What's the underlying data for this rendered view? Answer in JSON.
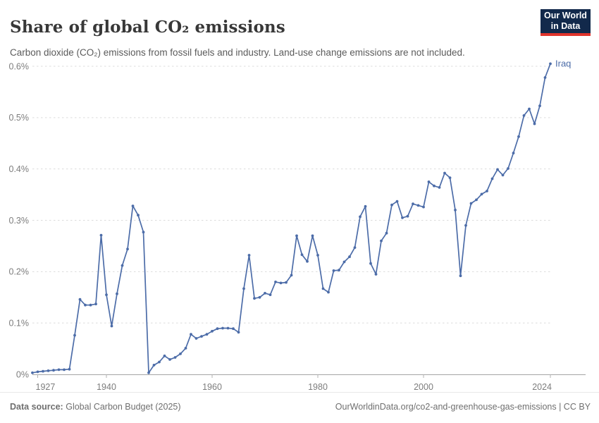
{
  "header": {
    "title": "Share of global CO₂ emissions",
    "subtitle": "Carbon dioxide (CO₂) emissions from fossil fuels and industry. Land-use change emissions are not included.",
    "logo_line1": "Our World",
    "logo_line2": "in Data"
  },
  "footer": {
    "source_label": "Data source:",
    "source_value": "Global Carbon Budget (2025)",
    "link": "OurWorldinData.org/co2-and-greenhouse-gas-emissions | CC BY"
  },
  "colors": {
    "series_line": "#4C6CA8",
    "grid": "#dcdcdc",
    "axis_line": "#a5a5a5",
    "tick_mark": "#b3b3b3",
    "tick_label": "#7d7d7d",
    "title_text": "#383838",
    "subtitle_text": "#5b5b5b",
    "footer_text": "#6f6f6f",
    "logo_bg": "#12294b",
    "logo_bar": "#e0342c"
  },
  "chart_data": {
    "type": "line",
    "title": "Share of global CO₂ emissions",
    "xlabel": "",
    "ylabel": "",
    "unit": "%",
    "grid": "horizontal-dashed",
    "legend_position": "end-of-line-label",
    "xlim": [
      1926,
      2024
    ],
    "ylim": [
      0,
      0.62
    ],
    "x_ticks": [
      1927,
      1940,
      1960,
      1980,
      2000,
      2024
    ],
    "y_ticks": [
      0,
      0.1,
      0.2,
      0.3,
      0.4,
      0.5,
      0.6
    ],
    "y_tick_labels": [
      "0%",
      "0.1%",
      "0.2%",
      "0.3%",
      "0.4%",
      "0.5%",
      "0.6%"
    ],
    "x": [
      1926,
      1927,
      1928,
      1929,
      1930,
      1931,
      1932,
      1933,
      1934,
      1935,
      1936,
      1937,
      1938,
      1939,
      1940,
      1941,
      1942,
      1943,
      1944,
      1945,
      1946,
      1947,
      1948,
      1949,
      1950,
      1951,
      1952,
      1953,
      1954,
      1955,
      1956,
      1957,
      1958,
      1959,
      1960,
      1961,
      1962,
      1963,
      1964,
      1965,
      1966,
      1967,
      1968,
      1969,
      1970,
      1971,
      1972,
      1973,
      1974,
      1975,
      1976,
      1977,
      1978,
      1979,
      1980,
      1981,
      1982,
      1983,
      1984,
      1985,
      1986,
      1987,
      1988,
      1989,
      1990,
      1991,
      1992,
      1993,
      1994,
      1995,
      1996,
      1997,
      1998,
      1999,
      2000,
      2001,
      2002,
      2003,
      2004,
      2005,
      2006,
      2007,
      2008,
      2009,
      2010,
      2011,
      2012,
      2013,
      2014,
      2015,
      2016,
      2017,
      2018,
      2019,
      2020,
      2021,
      2022,
      2023,
      2024
    ],
    "series": [
      {
        "name": "Iraq",
        "values": [
          0.003,
          0.005,
          0.006,
          0.007,
          0.008,
          0.009,
          0.009,
          0.01,
          0.076,
          0.146,
          0.135,
          0.135,
          0.137,
          0.271,
          0.155,
          0.094,
          0.157,
          0.212,
          0.244,
          0.328,
          0.31,
          0.277,
          0.003,
          0.018,
          0.024,
          0.036,
          0.029,
          0.033,
          0.04,
          0.051,
          0.078,
          0.07,
          0.074,
          0.078,
          0.084,
          0.089,
          0.09,
          0.09,
          0.089,
          0.082,
          0.167,
          0.232,
          0.148,
          0.15,
          0.158,
          0.155,
          0.18,
          0.178,
          0.179,
          0.193,
          0.27,
          0.233,
          0.22,
          0.27,
          0.232,
          0.167,
          0.16,
          0.202,
          0.203,
          0.219,
          0.229,
          0.247,
          0.307,
          0.327,
          0.216,
          0.195,
          0.26,
          0.275,
          0.33,
          0.337,
          0.305,
          0.308,
          0.332,
          0.329,
          0.326,
          0.375,
          0.367,
          0.364,
          0.392,
          0.383,
          0.32,
          0.192,
          0.29,
          0.333,
          0.34,
          0.351,
          0.357,
          0.381,
          0.399,
          0.388,
          0.401,
          0.431,
          0.463,
          0.504,
          0.517,
          0.488,
          0.523,
          0.578,
          0.605
        ]
      }
    ]
  }
}
